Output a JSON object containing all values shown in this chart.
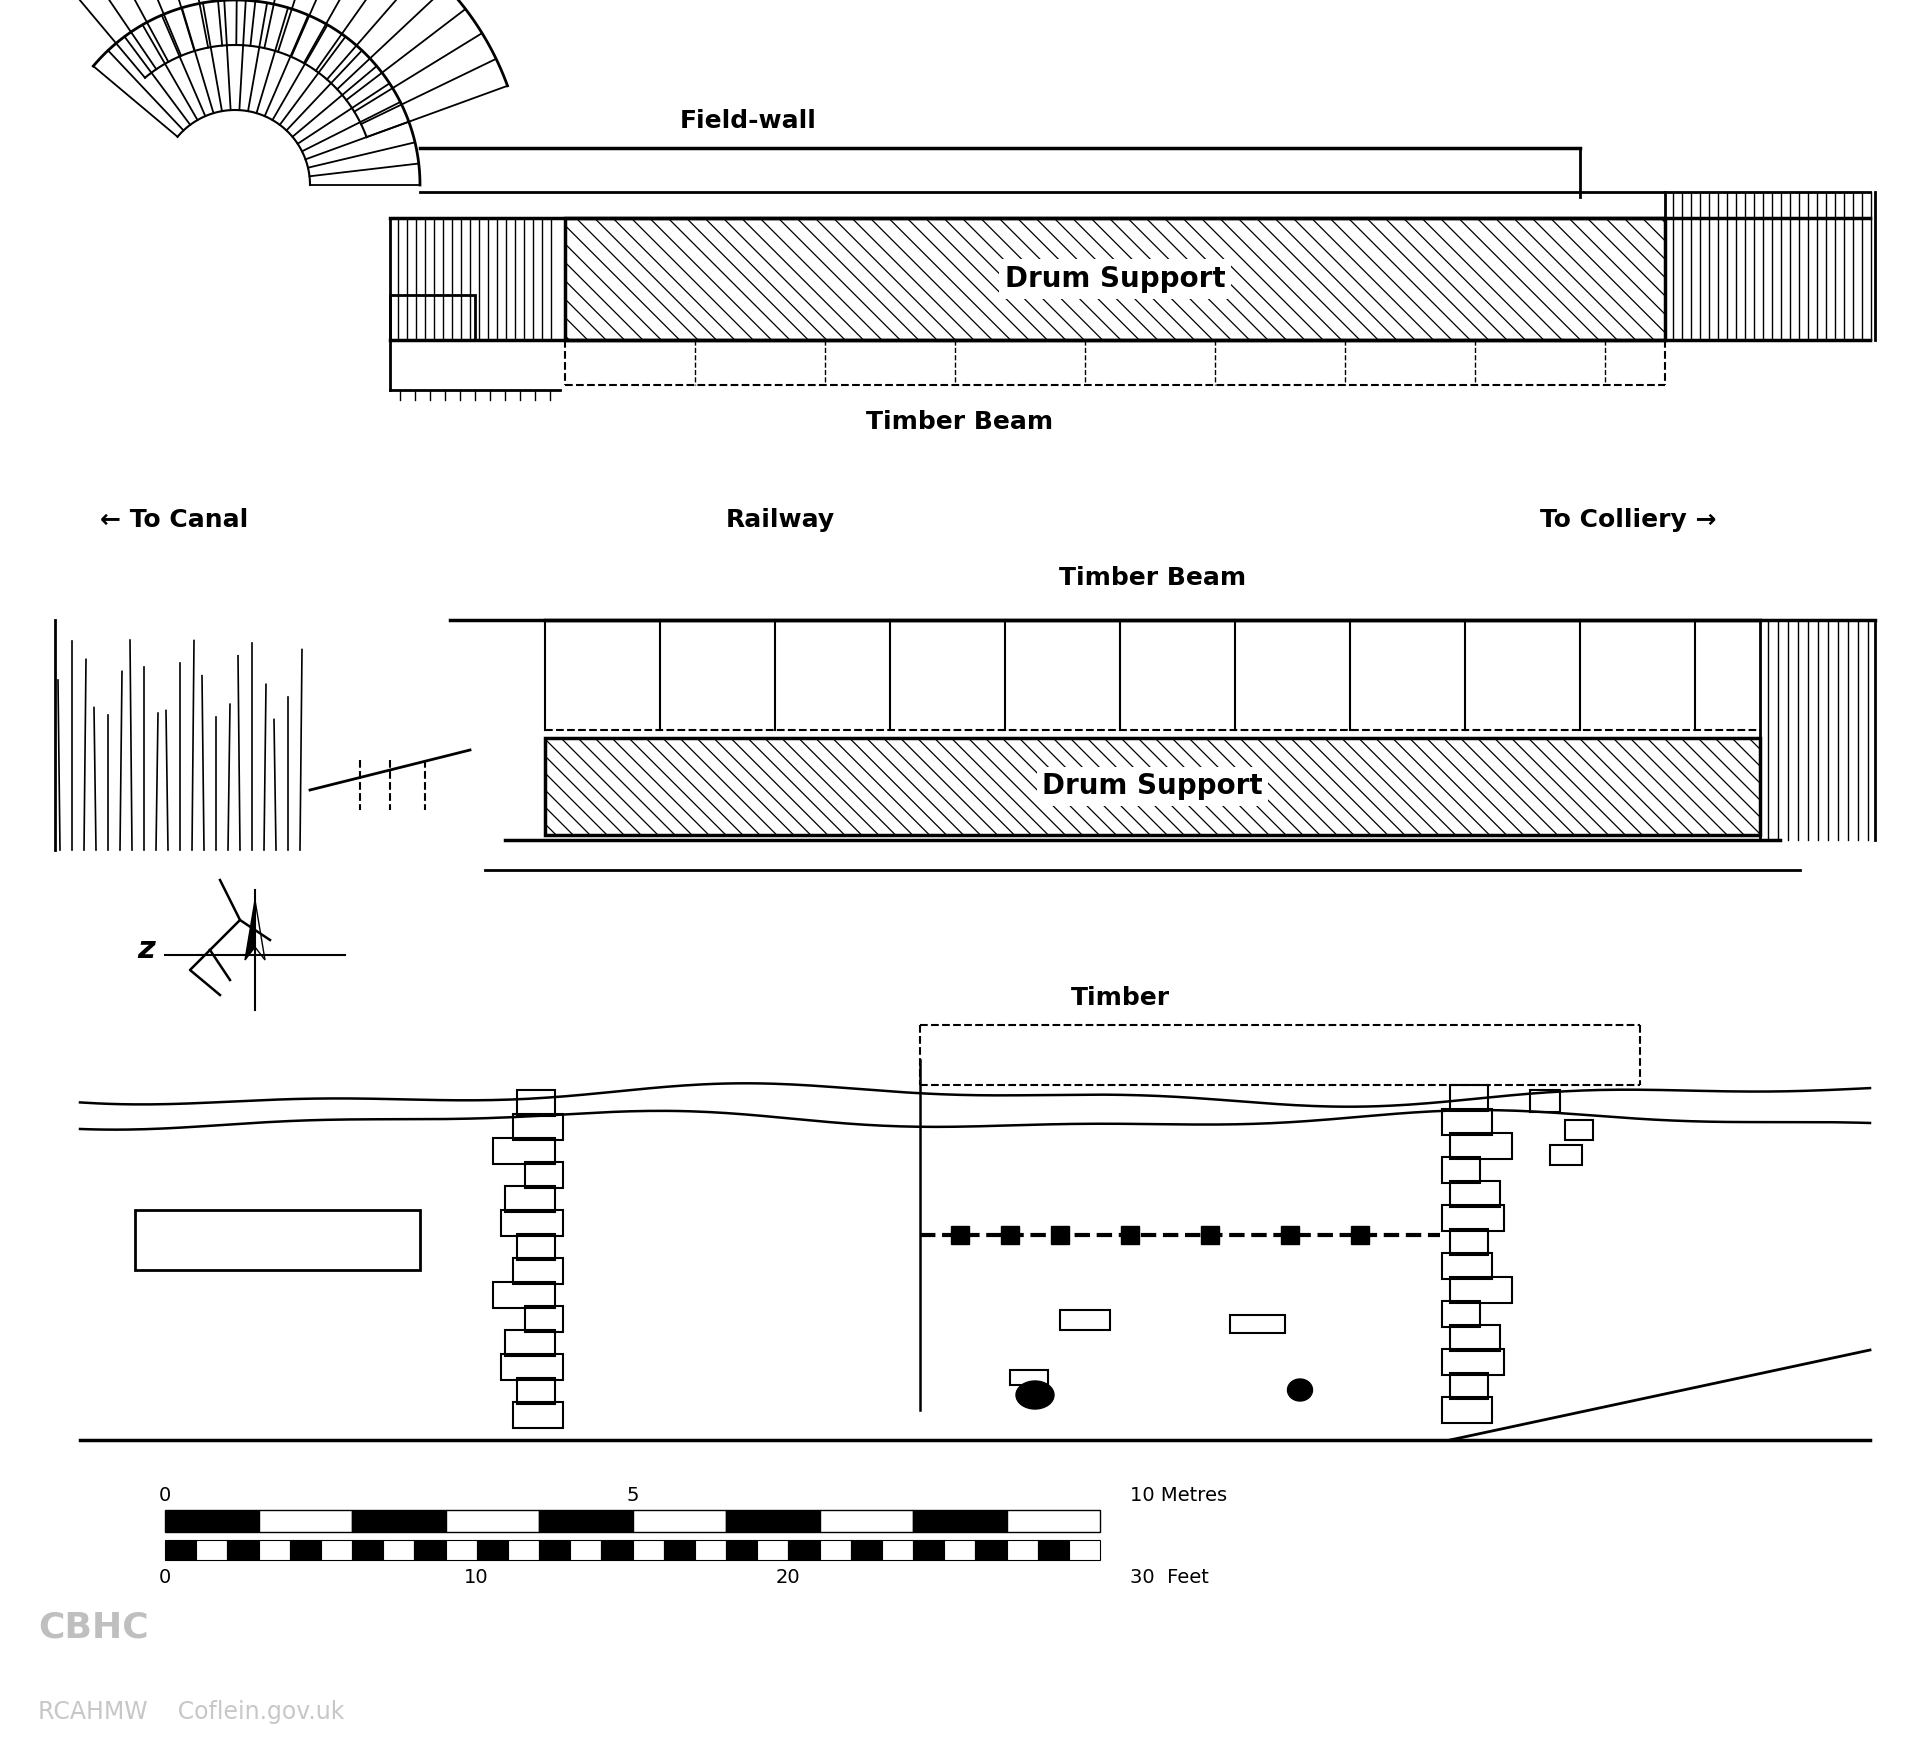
{
  "bg_color": "#ffffff",
  "line_color": "#000000",
  "labels": {
    "field_wall": "Field-wall",
    "timber_beam_plan": "Timber Beam",
    "drum_support_plan": "Drum Support",
    "to_canal": "← To Canal",
    "railway": "Railway",
    "to_colliery": "To Colliery →",
    "timber_beam_elev": "Timber Beam",
    "drum_support_elev": "Drum Support",
    "timber_section": "Timber",
    "north": "z",
    "scale_metres_0": "0",
    "scale_metres_5": "5",
    "scale_metres_10": "10 Metres",
    "scale_feet_0": "0",
    "scale_feet_10": "10",
    "scale_feet_20": "20",
    "scale_feet_30": "30  Feet"
  }
}
